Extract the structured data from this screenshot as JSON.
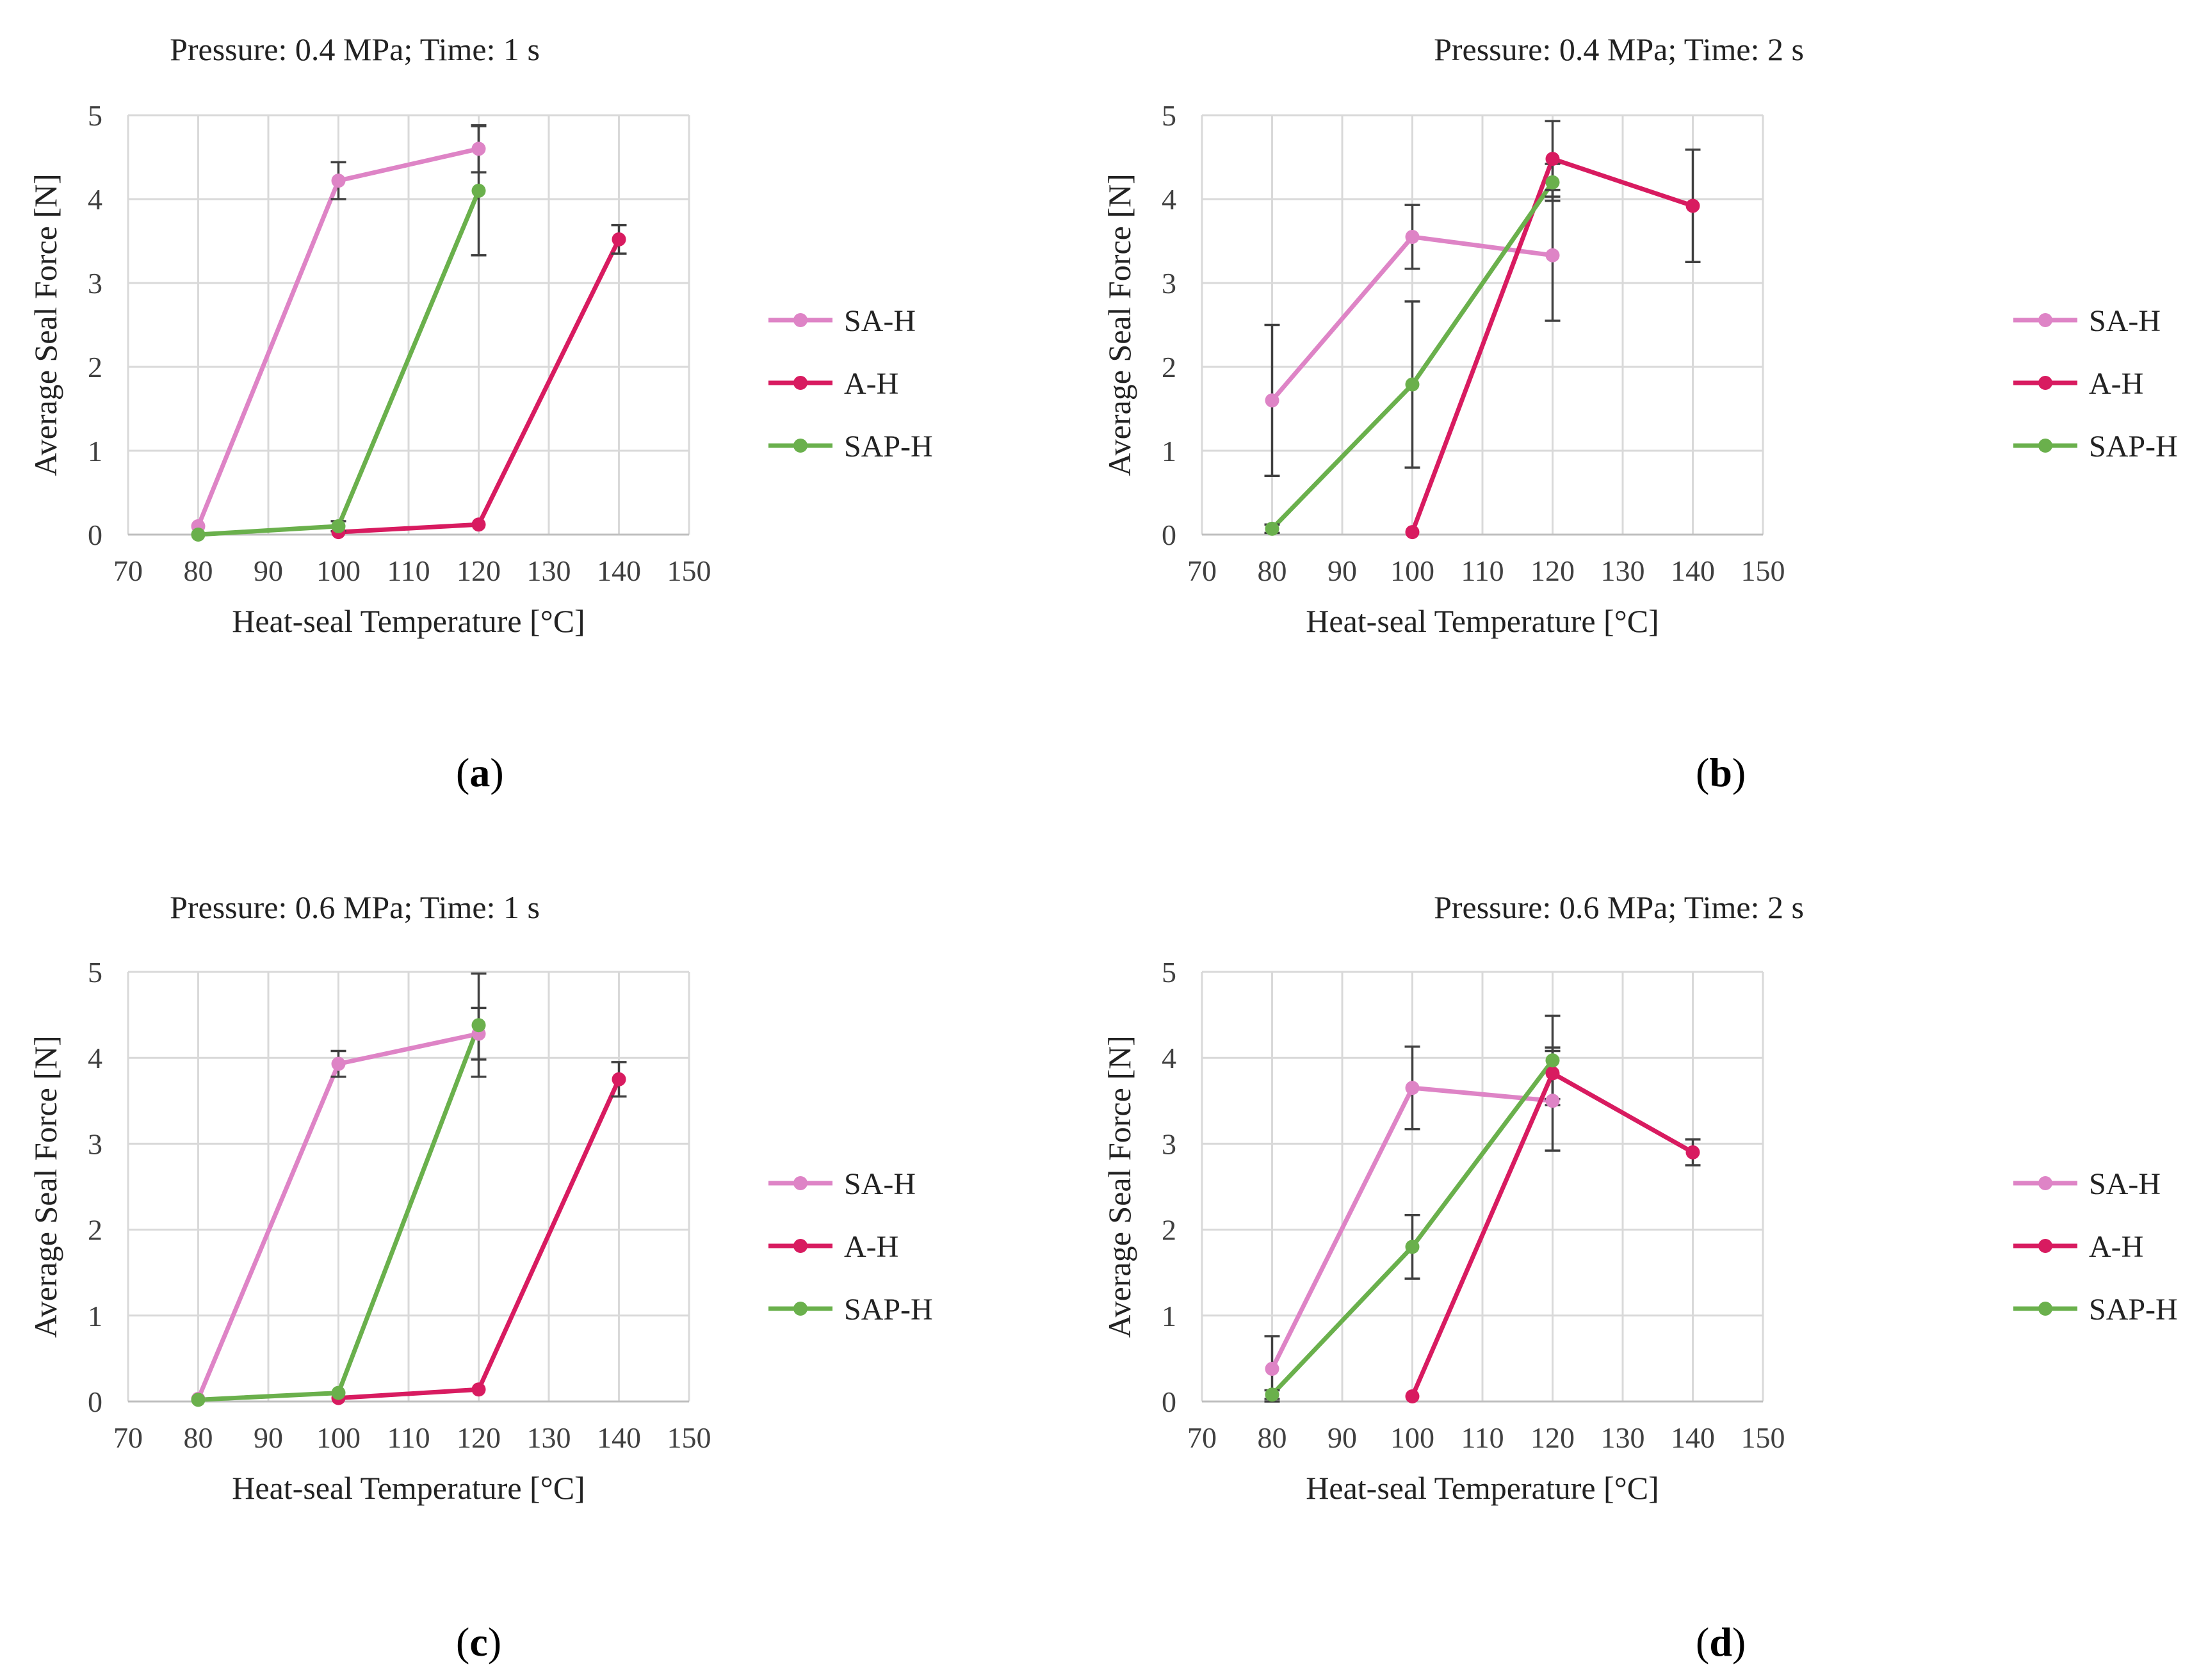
{
  "colors": {
    "SA-H": "#de84c6",
    "A-H": "#d81b60",
    "SAP-H": "#6ab04c",
    "grid": "#d9d9d9",
    "axis_text": "#404040",
    "error_bar": "#404040"
  },
  "charts": [
    {
      "id": "a",
      "caption_open": "(",
      "caption_letter": "a",
      "caption_close": ")"
    },
    {
      "id": "b",
      "caption_open": "(",
      "caption_letter": "b",
      "caption_close": ")"
    },
    {
      "id": "c",
      "caption_open": "(",
      "caption_letter": "c",
      "caption_close": ")"
    },
    {
      "id": "d",
      "caption_open": "(",
      "caption_letter": "d",
      "caption_close": ")"
    }
  ],
  "chart_data": [
    {
      "type": "line",
      "title": "Pressure: 0.4 MPa; Time: 1 s",
      "xlabel": "Heat-seal Temperature [°C]",
      "ylabel": "Average Seal Force [N]",
      "xlim": [
        70,
        150
      ],
      "ylim": [
        0,
        5
      ],
      "xticks": [
        70,
        80,
        90,
        100,
        110,
        120,
        130,
        140,
        150
      ],
      "yticks": [
        0,
        1,
        2,
        3,
        4,
        5
      ],
      "grid": true,
      "legend": "right",
      "series": [
        {
          "name": "SA-H",
          "x": [
            80,
            100,
            120
          ],
          "y": [
            0.1,
            4.22,
            4.6
          ],
          "err": [
            0,
            0.22,
            0.28
          ]
        },
        {
          "name": "A-H",
          "x": [
            100,
            120,
            140
          ],
          "y": [
            0.03,
            0.12,
            3.52
          ],
          "err": [
            0,
            0,
            0.17
          ]
        },
        {
          "name": "SAP-H",
          "x": [
            80,
            100,
            120
          ],
          "y": [
            0.0,
            0.1,
            4.1
          ],
          "err": [
            0,
            0.06,
            0.77
          ]
        }
      ]
    },
    {
      "type": "line",
      "title": "Pressure: 0.4 MPa; Time: 2 s",
      "xlabel": "Heat-seal Temperature [°C]",
      "ylabel": "Average Seal Force [N]",
      "xlim": [
        70,
        150
      ],
      "ylim": [
        0,
        5
      ],
      "xticks": [
        70,
        80,
        90,
        100,
        110,
        120,
        130,
        140,
        150
      ],
      "yticks": [
        0,
        1,
        2,
        3,
        4,
        5
      ],
      "grid": true,
      "legend": "right",
      "series": [
        {
          "name": "SA-H",
          "x": [
            80,
            100,
            120
          ],
          "y": [
            1.6,
            3.55,
            3.33
          ],
          "err": [
            0.9,
            0.38,
            0.78
          ]
        },
        {
          "name": "A-H",
          "x": [
            100,
            120,
            140
          ],
          "y": [
            0.03,
            4.48,
            3.92
          ],
          "err": [
            0,
            0.45,
            0.67
          ]
        },
        {
          "name": "SAP-H",
          "x": [
            80,
            100,
            120
          ],
          "y": [
            0.07,
            1.79,
            4.2
          ],
          "err": [
            0.05,
            0.99,
            0.22
          ]
        }
      ]
    },
    {
      "type": "line",
      "title": "Pressure: 0.6 MPa; Time: 1 s",
      "xlabel": "Heat-seal Temperature [°C]",
      "ylabel": "Average Seal Force [N]",
      "xlim": [
        70,
        150
      ],
      "ylim": [
        0,
        5
      ],
      "xticks": [
        70,
        80,
        90,
        100,
        110,
        120,
        130,
        140,
        150
      ],
      "yticks": [
        0,
        1,
        2,
        3,
        4,
        5
      ],
      "grid": true,
      "legend": "right",
      "series": [
        {
          "name": "SA-H",
          "x": [
            80,
            100,
            120
          ],
          "y": [
            0.03,
            3.93,
            4.28
          ],
          "err": [
            0,
            0.15,
            0.3
          ]
        },
        {
          "name": "A-H",
          "x": [
            100,
            120,
            140
          ],
          "y": [
            0.04,
            0.14,
            3.75
          ],
          "err": [
            0,
            0,
            0.2
          ]
        },
        {
          "name": "SAP-H",
          "x": [
            80,
            100,
            120
          ],
          "y": [
            0.02,
            0.1,
            4.38
          ],
          "err": [
            0,
            0,
            0.6
          ]
        }
      ]
    },
    {
      "type": "line",
      "title": "Pressure: 0.6 MPa; Time: 2 s",
      "xlabel": "Heat-seal Temperature [°C]",
      "ylabel": "Average Seal Force [N]",
      "xlim": [
        70,
        150
      ],
      "ylim": [
        0,
        5
      ],
      "xticks": [
        70,
        80,
        90,
        100,
        110,
        120,
        130,
        140,
        150
      ],
      "yticks": [
        0,
        1,
        2,
        3,
        4,
        5
      ],
      "grid": true,
      "legend": "right",
      "series": [
        {
          "name": "SA-H",
          "x": [
            80,
            100,
            120
          ],
          "y": [
            0.38,
            3.65,
            3.5
          ],
          "err": [
            0.38,
            0.48,
            0.58
          ]
        },
        {
          "name": "A-H",
          "x": [
            100,
            120,
            140
          ],
          "y": [
            0.06,
            3.82,
            2.9
          ],
          "err": [
            0,
            0.3,
            0.15
          ]
        },
        {
          "name": "SAP-H",
          "x": [
            80,
            100,
            120
          ],
          "y": [
            0.08,
            1.8,
            3.97
          ],
          "err": [
            0.05,
            0.37,
            0.52
          ]
        }
      ]
    }
  ]
}
